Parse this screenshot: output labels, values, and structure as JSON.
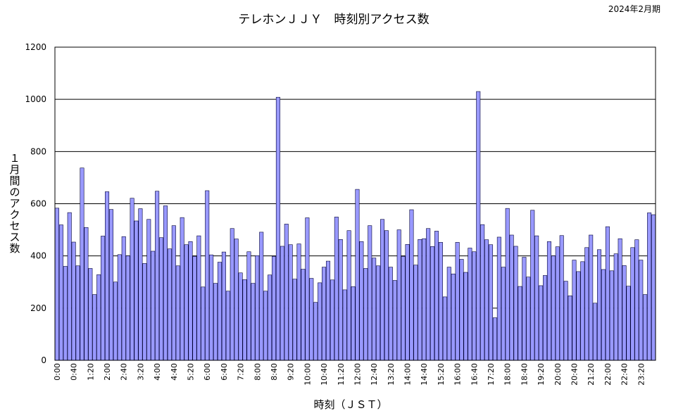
{
  "chart_data": {
    "type": "bar",
    "title": "テレホンＪＪＹ　時刻別アクセス数",
    "period": "2024年2月期",
    "xlabel": "時刻（ＪＳＴ）",
    "ylabel": "１月間のアクセス数",
    "ylim": [
      0,
      1200
    ],
    "yticks": [
      "0",
      "200",
      "400",
      "600",
      "800",
      "1000",
      "1200"
    ],
    "grid": true,
    "xtick_labels": [
      "0:00",
      "0:40",
      "1:20",
      "2:00",
      "2:40",
      "3:20",
      "4:00",
      "4:40",
      "5:20",
      "6:00",
      "6:40",
      "7:20",
      "8:00",
      "8:40",
      "9:20",
      "10:00",
      "10:40",
      "11:20",
      "12:00",
      "12:40",
      "13:20",
      "14:00",
      "14:40",
      "15:20",
      "16:00",
      "16:40",
      "17:20",
      "18:00",
      "18:40",
      "19:20",
      "20:00",
      "20:40",
      "21:20",
      "22:00",
      "22:40",
      "23:20"
    ],
    "bar_color": "#9999ff",
    "values": [
      583,
      519,
      360,
      566,
      453,
      362,
      737,
      509,
      352,
      252,
      328,
      476,
      646,
      578,
      300,
      405,
      474,
      400,
      621,
      534,
      581,
      371,
      540,
      418,
      648,
      470,
      592,
      427,
      516,
      362,
      547,
      443,
      455,
      398,
      477,
      281,
      650,
      404,
      295,
      376,
      415,
      265,
      505,
      465,
      335,
      309,
      416,
      295,
      401,
      491,
      265,
      327,
      398,
      1008,
      437,
      522,
      443,
      311,
      446,
      349,
      546,
      314,
      222,
      297,
      357,
      380,
      308,
      549,
      463,
      270,
      497,
      282,
      655,
      455,
      352,
      516,
      392,
      362,
      540,
      497,
      357,
      306,
      500,
      398,
      444,
      577,
      365,
      463,
      466,
      505,
      436,
      495,
      452,
      243,
      357,
      331,
      452,
      387,
      337,
      430,
      416,
      1030,
      520,
      462,
      443,
      163,
      472,
      357,
      582,
      480,
      437,
      283,
      395,
      319,
      575,
      477,
      286,
      325,
      455,
      400,
      435,
      478,
      303,
      247,
      384,
      340,
      378,
      432,
      480,
      219,
      424,
      348,
      512,
      343,
      408,
      466,
      363,
      284,
      432,
      462,
      384,
      252,
      565,
      558
    ]
  }
}
